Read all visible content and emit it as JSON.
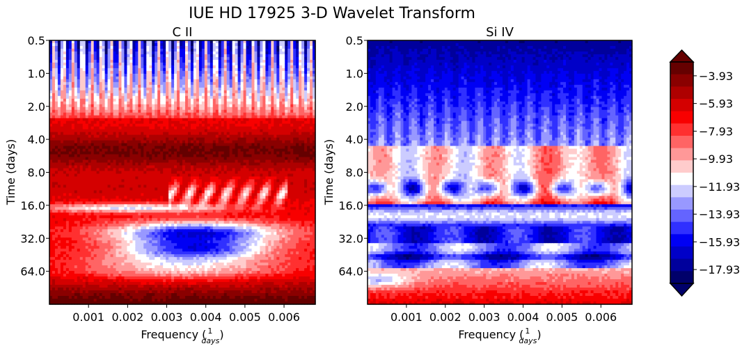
{
  "title": "IUE HD 17925 3-D Wavelet Transform",
  "chart_data": [
    {
      "type": "heatmap",
      "title": "C II",
      "xlabel": "Frequency",
      "xlabel_unit_num": "1",
      "xlabel_unit_den": "days",
      "ylabel": "Time (days)",
      "xticks": [
        0.001,
        0.002,
        0.003,
        0.004,
        0.005,
        0.006
      ],
      "xtick_labels": [
        "0.001",
        "0.002",
        "0.003",
        "0.004",
        "0.005",
        "0.006"
      ],
      "yticks": [
        0.5,
        1.0,
        2.0,
        4.0,
        8.0,
        16.0,
        32.0,
        64.0
      ],
      "ytick_labels": [
        "0.5",
        "1.0",
        "2.0",
        "4.0",
        "8.0",
        "16.0",
        "32.0",
        "64.0"
      ],
      "xlim": [
        0.0,
        0.0068
      ],
      "ylim": [
        0.5,
        128
      ],
      "yscale": "log2-inverted",
      "colormap": "seismic",
      "pattern": "red dominated; blue vertical streaks near top; blue band around 24-32 days"
    },
    {
      "type": "heatmap",
      "title": "Si IV",
      "xlabel": "Frequency",
      "xlabel_unit_num": "1",
      "xlabel_unit_den": "days",
      "ylabel": "Time (days)",
      "xticks": [
        0.001,
        0.002,
        0.003,
        0.004,
        0.005,
        0.006
      ],
      "xtick_labels": [
        "0.001",
        "0.002",
        "0.003",
        "0.004",
        "0.005",
        "0.006"
      ],
      "yticks": [
        0.5,
        1.0,
        2.0,
        4.0,
        8.0,
        16.0,
        32.0,
        64.0
      ],
      "ytick_labels": [
        "0.5",
        "1.0",
        "2.0",
        "4.0",
        "8.0",
        "16.0",
        "32.0",
        "64.0"
      ],
      "xlim": [
        0.0,
        0.0068
      ],
      "ylim": [
        0.5,
        128
      ],
      "yscale": "log2-inverted",
      "colormap": "seismic",
      "pattern": "blue dominated top; red band around 16 days; red lower region"
    }
  ],
  "colorbar": {
    "tick_labels": [
      "−3.93",
      "−5.93",
      "−7.93",
      "−9.93",
      "−11.93",
      "−13.93",
      "−15.93",
      "−17.93"
    ],
    "values": [
      -3.93,
      -5.93,
      -7.93,
      -9.93,
      -11.93,
      -13.93,
      -15.93,
      -17.93
    ],
    "range": [
      -18.93,
      -2.93
    ],
    "extend": "both",
    "levels": [
      "#ffffff"
    ],
    "colors": [
      "#650000",
      "#8a0000",
      "#ae0000",
      "#d40000",
      "#f80000",
      "#ff3030",
      "#ff6464",
      "#ff9898",
      "#ffcccc",
      "#ffffff",
      "#ccccff",
      "#9898ff",
      "#6464ff",
      "#3030ff",
      "#0000f4",
      "#0000c8",
      "#00009c",
      "#00006a"
    ]
  }
}
